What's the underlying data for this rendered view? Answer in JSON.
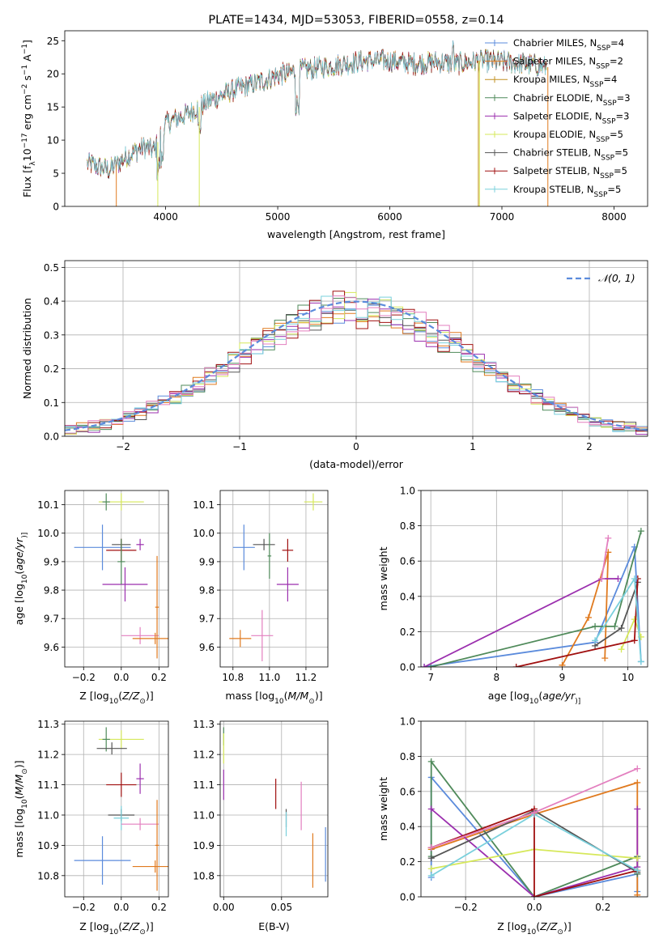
{
  "colors": {
    "Chabrier MILES": "#5b8bdc",
    "Salpeter MILES": "#e07a1f",
    "Kroupa MILES": "#c29020",
    "Chabrier ELODIE": "#4f8a5a",
    "Salpeter ELODIE": "#9b2fae",
    "Kroupa ELODIE": "#d6e85a",
    "Chabrier STELIB": "#555555",
    "Salpeter STELIB": "#a01010",
    "Kroupa STELIB": "#7ad0dc",
    "pink": "#e37fbf",
    "gaussian": "#5b8bdc"
  },
  "chart_data": [
    {
      "id": "spectrum",
      "type": "line",
      "title": "PLATE=1434, MJD=53053, FIBERID=0558, z=0.14",
      "xlabel": "wavelength [Angstrom, rest frame]",
      "ylabel": "Flux [f",
      "ylabel_parts": [
        "Flux [f",
        "λ",
        "10",
        "−17",
        " erg cm",
        "−2",
        " s",
        "−1",
        " A",
        "−1",
        "]"
      ],
      "xlim": [
        3100,
        8300
      ],
      "ylim": [
        0,
        26.5
      ],
      "xticks": [
        4000,
        5000,
        6000,
        7000,
        8000
      ],
      "yticks": [
        0,
        5,
        10,
        15,
        20,
        25
      ],
      "grid": false,
      "legend_position": "top-right",
      "continuum_anchors": [
        [
          3300,
          6.5
        ],
        [
          3500,
          5.5
        ],
        [
          3650,
          7.5
        ],
        [
          3800,
          9.0
        ],
        [
          3900,
          8.5
        ],
        [
          4000,
          12.5
        ],
        [
          4200,
          14.0
        ],
        [
          4400,
          16.0
        ],
        [
          4600,
          17.5
        ],
        [
          4800,
          18.5
        ],
        [
          5000,
          19.8
        ],
        [
          5200,
          20.5
        ],
        [
          5400,
          21.0
        ],
        [
          5600,
          21.5
        ],
        [
          5800,
          22.0
        ],
        [
          6000,
          22.0
        ],
        [
          6200,
          21.5
        ],
        [
          6400,
          21.8
        ],
        [
          6600,
          21.5
        ],
        [
          6800,
          22.0
        ],
        [
          7000,
          21.8
        ],
        [
          7200,
          21.5
        ],
        [
          7400,
          21.0
        ]
      ],
      "legend": [
        {
          "label": "Chabrier MILES, N",
          "sub": "SSP",
          "suffix": "=4"
        },
        {
          "label": "Salpeter MILES, N",
          "sub": "SSP",
          "suffix": "=2"
        },
        {
          "label": "Kroupa MILES, N",
          "sub": "SSP",
          "suffix": "=4"
        },
        {
          "label": "Chabrier ELODIE, N",
          "sub": "SSP",
          "suffix": "=3"
        },
        {
          "label": "Salpeter ELODIE, N",
          "sub": "SSP",
          "suffix": "=3"
        },
        {
          "label": "Kroupa ELODIE, N",
          "sub": "SSP",
          "suffix": "=5"
        },
        {
          "label": "Chabrier STELIB, N",
          "sub": "SSP",
          "suffix": "=5"
        },
        {
          "label": "Salpeter STELIB, N",
          "sub": "SSP",
          "suffix": "=5"
        },
        {
          "label": "Kroupa STELIB, N",
          "sub": "SSP",
          "suffix": "=5"
        }
      ]
    },
    {
      "id": "residuals",
      "type": "line",
      "xlabel": "(data-model)/error",
      "ylabel": "Normed distribution",
      "xlim": [
        -2.5,
        2.5
      ],
      "ylim": [
        0,
        0.52
      ],
      "xticks": [
        -2,
        -1,
        0,
        1,
        2
      ],
      "yticks": [
        0.0,
        0.1,
        0.2,
        0.3,
        0.4,
        0.5
      ],
      "grid": true,
      "legend_position": "top-right",
      "legend": [
        {
          "label": "𝒩(0, 1)"
        }
      ]
    },
    {
      "id": "age_vs_Z",
      "type": "scatter",
      "xlabel": "Z [log",
      "xlabel_parts": [
        "Z [log",
        "10",
        "(",
        "Z/Z",
        "⊙",
        ")]"
      ],
      "ylabel_parts": [
        "age  [log",
        "10",
        "(",
        "age/yr",
        ")]"
      ],
      "xlim": [
        -0.3,
        0.25
      ],
      "ylim": [
        9.53,
        10.15
      ],
      "xticks": [
        -0.2,
        0.0,
        0.2
      ],
      "yticks": [
        9.6,
        9.7,
        9.8,
        9.9,
        10.0,
        10.1
      ],
      "grid": true,
      "points": [
        {
          "series": "Kroupa ELODIE",
          "x": 0.0,
          "y": 10.11,
          "xerr": 0.12,
          "yerr": 0.03
        },
        {
          "series": "Chabrier ELODIE",
          "x": -0.08,
          "y": 10.11,
          "xerr": 0.02,
          "yerr": 0.03
        },
        {
          "series": "Chabrier MILES",
          "x": -0.1,
          "y": 9.95,
          "xerr": 0.15,
          "yerr": 0.08
        },
        {
          "series": "Chabrier STELIB",
          "x": 0.0,
          "y": 9.96,
          "xerr": 0.05,
          "yerr": 0.02
        },
        {
          "series": "Salpeter STELIB",
          "x": 0.0,
          "y": 9.94,
          "xerr": 0.08,
          "yerr": 0.04
        },
        {
          "series": "Salpeter ELODIE",
          "x": 0.1,
          "y": 9.96,
          "xerr": 0.02,
          "yerr": 0.02
        },
        {
          "series": "Salpeter ELODIE",
          "x": 0.02,
          "y": 9.82,
          "xerr": 0.12,
          "yerr": 0.06
        },
        {
          "series": "Chabrier ELODIE",
          "x": 0.0,
          "y": 9.9,
          "xerr": 0.02,
          "yerr": 0.08
        },
        {
          "series": "pink",
          "x": 0.1,
          "y": 9.64,
          "xerr": 0.1,
          "yerr": 0.03
        },
        {
          "series": "Salpeter MILES",
          "x": 0.18,
          "y": 9.63,
          "xerr": 0.12,
          "yerr": 0.02
        },
        {
          "series": "Salpeter MILES",
          "x": 0.19,
          "y": 9.74,
          "xerr": 0.01,
          "yerr": 0.18
        }
      ]
    },
    {
      "id": "age_vs_mass",
      "type": "scatter",
      "xlabel_parts": [
        "mass [log",
        "10",
        "(",
        "M/M",
        "⊙",
        ")]"
      ],
      "xlim": [
        10.73,
        11.32
      ],
      "ylim": [
        9.53,
        10.15
      ],
      "xticks": [
        10.8,
        11.0,
        11.2
      ],
      "yticks": [
        9.6,
        9.7,
        9.8,
        9.9,
        10.0,
        10.1
      ],
      "grid": true,
      "points": [
        {
          "series": "Kroupa ELODIE",
          "x": 11.24,
          "y": 10.11,
          "xerr": 0.05,
          "yerr": 0.03
        },
        {
          "series": "Chabrier MILES",
          "x": 10.86,
          "y": 9.95,
          "xerr": 0.06,
          "yerr": 0.08
        },
        {
          "series": "Chabrier STELIB",
          "x": 10.97,
          "y": 9.96,
          "xerr": 0.06,
          "yerr": 0.02
        },
        {
          "series": "Chabrier ELODIE",
          "x": 11.0,
          "y": 9.92,
          "xerr": 0.01,
          "yerr": 0.08
        },
        {
          "series": "Salpeter STELIB",
          "x": 11.1,
          "y": 9.94,
          "xerr": 0.03,
          "yerr": 0.04
        },
        {
          "series": "Salpeter ELODIE",
          "x": 11.1,
          "y": 9.82,
          "xerr": 0.06,
          "yerr": 0.06
        },
        {
          "series": "Salpeter MILES",
          "x": 10.84,
          "y": 9.63,
          "xerr": 0.06,
          "yerr": 0.03
        },
        {
          "series": "pink",
          "x": 10.96,
          "y": 9.64,
          "xerr": 0.06,
          "yerr": 0.09
        }
      ]
    },
    {
      "id": "massweight_vs_age",
      "type": "line",
      "xlabel_parts": [
        "age  [log",
        "10",
        "(",
        "age/yr",
        ")]"
      ],
      "ylabel": "mass weight",
      "xlim": [
        6.85,
        10.3
      ],
      "ylim": [
        0,
        1.0
      ],
      "xticks": [
        7,
        8,
        9,
        10
      ],
      "yticks": [
        0.0,
        0.2,
        0.4,
        0.6,
        0.8,
        1.0
      ],
      "grid": true,
      "series": [
        {
          "name": "Chabrier MILES",
          "x": [
            6.9,
            9.5,
            10.1,
            10.2
          ],
          "y": [
            0.0,
            0.14,
            0.68,
            0.03
          ]
        },
        {
          "name": "Salpeter MILES",
          "x": [
            9.0,
            9.4,
            9.7,
            9.65
          ],
          "y": [
            0.01,
            0.28,
            0.65,
            0.05
          ]
        },
        {
          "name": "Chabrier ELODIE",
          "x": [
            7.0,
            9.5,
            9.8,
            10.2
          ],
          "y": [
            0.0,
            0.23,
            0.23,
            0.77
          ]
        },
        {
          "name": "Salpeter ELODIE",
          "x": [
            6.9,
            9.6,
            9.85
          ],
          "y": [
            0.0,
            0.5,
            0.5
          ]
        },
        {
          "name": "Kroupa ELODIE",
          "x": [
            9.9,
            10.1,
            10.2
          ],
          "y": [
            0.1,
            0.27,
            0.17
          ]
        },
        {
          "name": "Chabrier STELIB",
          "x": [
            9.5,
            9.9,
            10.15
          ],
          "y": [
            0.12,
            0.22,
            0.48
          ]
        },
        {
          "name": "Salpeter STELIB",
          "x": [
            8.3,
            10.1,
            10.15
          ],
          "y": [
            0.0,
            0.15,
            0.5
          ]
        },
        {
          "name": "Kroupa STELIB",
          "x": [
            9.5,
            10.1,
            10.2
          ],
          "y": [
            0.15,
            0.5,
            0.03
          ]
        },
        {
          "name": "pink",
          "x": [
            9.6,
            9.7
          ],
          "y": [
            0.5,
            0.73
          ]
        }
      ]
    },
    {
      "id": "mass_vs_Z",
      "type": "scatter",
      "xlabel_parts": [
        "Z [log",
        "10",
        "(",
        "Z/Z",
        "⊙",
        ")]"
      ],
      "ylabel_parts": [
        "mass [log",
        "10",
        "(",
        "M/M",
        "⊙",
        ")]"
      ],
      "xlim": [
        -0.3,
        0.25
      ],
      "ylim": [
        10.73,
        11.31
      ],
      "xticks": [
        -0.2,
        0.0,
        0.2
      ],
      "yticks": [
        10.8,
        10.9,
        11.0,
        11.1,
        11.2,
        11.3
      ],
      "grid": true,
      "points": [
        {
          "series": "Kroupa ELODIE",
          "x": 0.0,
          "y": 11.25,
          "xerr": 0.12,
          "yerr": 0.03
        },
        {
          "series": "Chabrier ELODIE",
          "x": -0.08,
          "y": 11.25,
          "xerr": 0.02,
          "yerr": 0.04
        },
        {
          "series": "Chabrier STELIB",
          "x": -0.05,
          "y": 11.22,
          "xerr": 0.08,
          "yerr": 0.02
        },
        {
          "series": "Salpeter STELIB",
          "x": 0.0,
          "y": 11.1,
          "xerr": 0.08,
          "yerr": 0.04
        },
        {
          "series": "Salpeter ELODIE",
          "x": 0.1,
          "y": 11.12,
          "xerr": 0.02,
          "yerr": 0.05
        },
        {
          "series": "Chabrier STELIB",
          "x": 0.0,
          "y": 11.0,
          "xerr": 0.07,
          "yerr": 0.02
        },
        {
          "series": "Kroupa STELIB",
          "x": 0.0,
          "y": 10.99,
          "xerr": 0.04,
          "yerr": 0.04
        },
        {
          "series": "pink",
          "x": 0.1,
          "y": 10.97,
          "xerr": 0.1,
          "yerr": 0.02
        },
        {
          "series": "Chabrier MILES",
          "x": -0.1,
          "y": 10.85,
          "xerr": 0.15,
          "yerr": 0.08
        },
        {
          "series": "Salpeter MILES",
          "x": 0.18,
          "y": 10.83,
          "xerr": 0.12,
          "yerr": 0.02
        },
        {
          "series": "Salpeter MILES",
          "x": 0.19,
          "y": 10.9,
          "xerr": 0.01,
          "yerr": 0.15
        }
      ]
    },
    {
      "id": "mass_vs_ebv",
      "type": "scatter",
      "xlabel": "E(B-V)",
      "xlim": [
        -0.003,
        0.09
      ],
      "ylim": [
        10.73,
        11.31
      ],
      "xticks": [
        0.0,
        0.05
      ],
      "yticks": [
        10.8,
        10.9,
        11.0,
        11.1,
        11.2,
        11.3
      ],
      "grid": true,
      "points": [
        {
          "series": "Chabrier ELODIE",
          "x": 0.0,
          "y": 11.26,
          "xerr": 0.0,
          "yerr": 0.03
        },
        {
          "series": "Kroupa ELODIE",
          "x": 0.0,
          "y": 11.22,
          "xerr": 0.0,
          "yerr": 0.05
        },
        {
          "series": "Salpeter ELODIE",
          "x": 0.0,
          "y": 11.1,
          "xerr": 0.0,
          "yerr": 0.05
        },
        {
          "series": "Salpeter STELIB",
          "x": 0.045,
          "y": 11.07,
          "xerr": 0.0,
          "yerr": 0.05
        },
        {
          "series": "pink",
          "x": 0.067,
          "y": 11.03,
          "xerr": 0.0,
          "yerr": 0.08
        },
        {
          "series": "Chabrier STELIB",
          "x": 0.054,
          "y": 10.99,
          "xerr": 0.0,
          "yerr": 0.03
        },
        {
          "series": "Kroupa STELIB",
          "x": 0.054,
          "y": 10.97,
          "xerr": 0.0,
          "yerr": 0.04
        },
        {
          "series": "Salpeter MILES",
          "x": 0.077,
          "y": 10.85,
          "xerr": 0.0,
          "yerr": 0.09
        },
        {
          "series": "Chabrier MILES",
          "x": 0.088,
          "y": 10.87,
          "xerr": 0.0,
          "yerr": 0.09
        }
      ]
    },
    {
      "id": "massweight_vs_Z",
      "type": "line",
      "xlabel_parts": [
        "Z [log",
        "10",
        "(",
        "Z/Z",
        "⊙",
        ")]"
      ],
      "ylabel": "mass weight",
      "xlim": [
        -0.33,
        0.33
      ],
      "ylim": [
        0,
        1.0
      ],
      "xticks": [
        -0.2,
        0.0,
        0.2
      ],
      "yticks": [
        0.0,
        0.2,
        0.4,
        0.6,
        0.8,
        1.0
      ],
      "grid": true,
      "series": [
        {
          "name": "Chabrier MILES",
          "x": [
            -0.3,
            -0.3,
            0.0,
            0.3,
            0.3
          ],
          "y": [
            0.11,
            0.68,
            0.0,
            0.13,
            0.03
          ]
        },
        {
          "name": "Salpeter MILES",
          "x": [
            -0.3,
            0.0,
            0.3,
            0.3
          ],
          "y": [
            0.27,
            0.47,
            0.65,
            0.01
          ]
        },
        {
          "name": "Chabrier ELODIE",
          "x": [
            -0.3,
            -0.3,
            0.0,
            0.3,
            0.3
          ],
          "y": [
            0.23,
            0.77,
            0.0,
            0.23,
            0.13
          ]
        },
        {
          "name": "Salpeter ELODIE",
          "x": [
            -0.3,
            0.0,
            0.3,
            0.3
          ],
          "y": [
            0.5,
            0.0,
            0.17,
            0.5
          ]
        },
        {
          "name": "Kroupa ELODIE",
          "x": [
            -0.3,
            0.0,
            0.3
          ],
          "y": [
            0.16,
            0.27,
            0.22
          ]
        },
        {
          "name": "Chabrier STELIB",
          "x": [
            -0.3,
            0.0,
            0.3
          ],
          "y": [
            0.22,
            0.49,
            0.14
          ]
        },
        {
          "name": "Salpeter STELIB",
          "x": [
            -0.3,
            0.0,
            0.0,
            0.3
          ],
          "y": [
            0.28,
            0.5,
            0.0,
            0.15
          ]
        },
        {
          "name": "Kroupa STELIB",
          "x": [
            -0.3,
            0.0,
            0.3
          ],
          "y": [
            0.12,
            0.47,
            0.15
          ]
        },
        {
          "name": "pink",
          "x": [
            -0.3,
            0.0,
            0.3
          ],
          "y": [
            0.28,
            0.48,
            0.73
          ]
        }
      ]
    }
  ]
}
